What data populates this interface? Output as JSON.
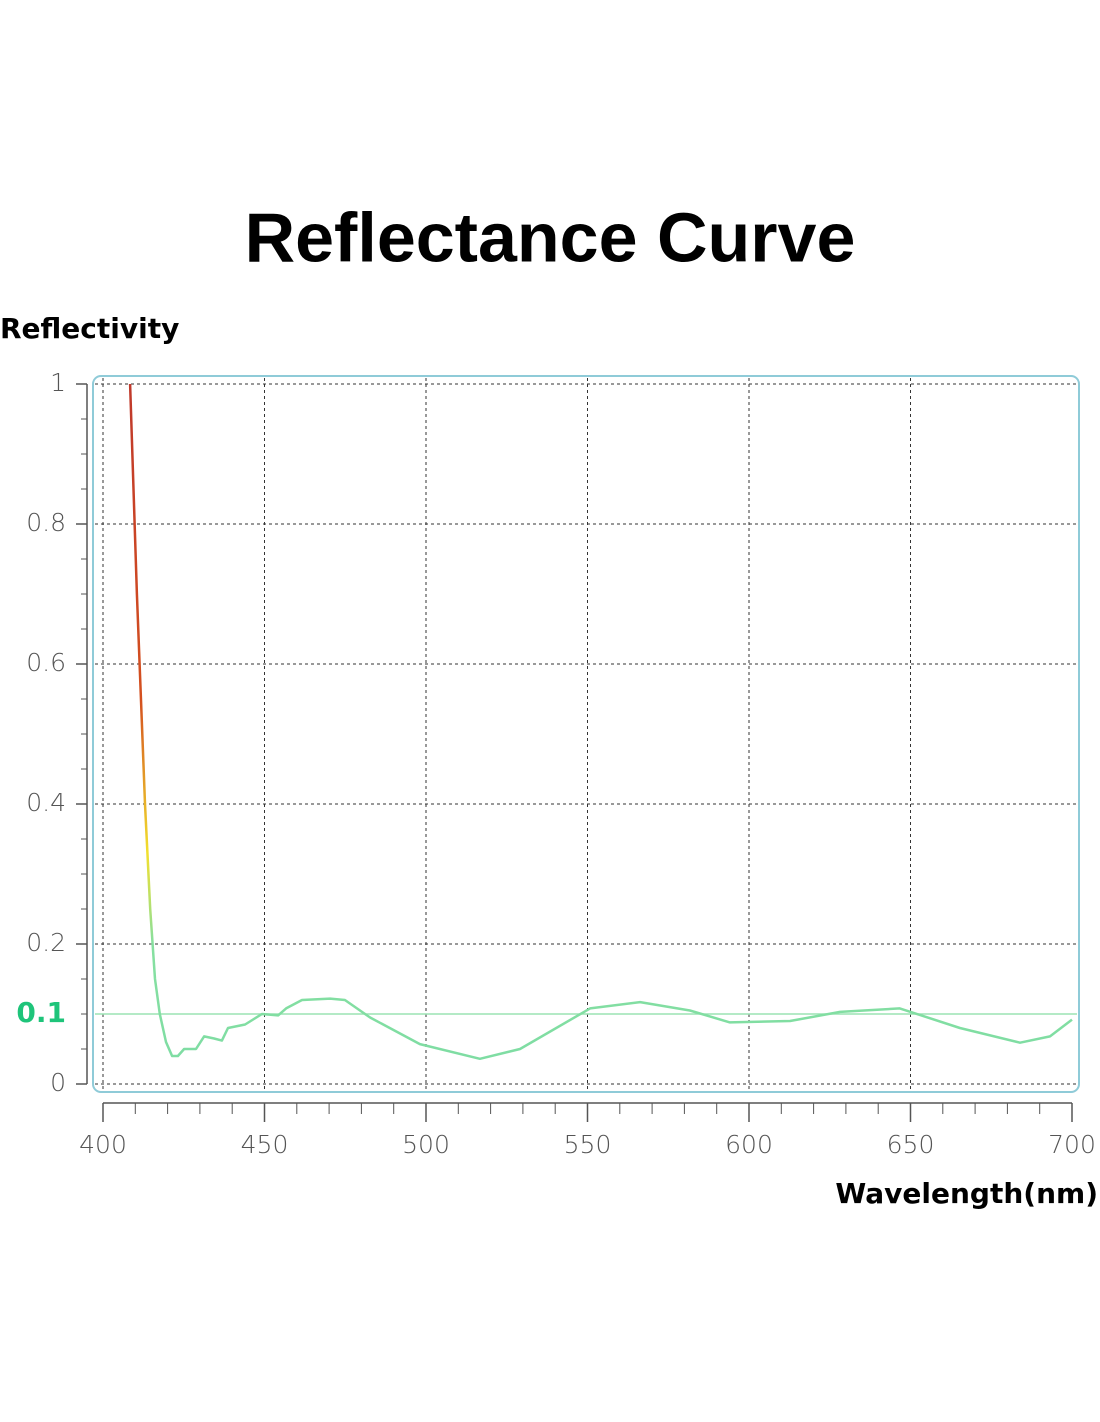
{
  "chart_data": {
    "type": "line",
    "title": "Reflectance Curve",
    "y_label": "Reflectivity",
    "x_label": "Wavelength(nm)",
    "x": [
      408.4,
      410.5,
      413,
      414.6,
      416.1,
      417.6,
      419.5,
      421.4,
      423.2,
      425.1,
      428.8,
      431.3,
      434.4,
      436.8,
      438.7,
      444,
      449.2,
      454.2,
      456.7,
      461.6,
      470.3,
      474.9,
      482.7,
      498.1,
      516.7,
      529.1,
      550.8,
      566.3,
      581.7,
      594.1,
      612.7,
      628.2,
      646.7,
      665.3,
      683.9,
      693.2,
      700
    ],
    "series": [
      {
        "name": "Reflectivity",
        "color": "#7ddca4",
        "values": [
          1.0,
          0.7,
          0.4,
          0.25,
          0.15,
          0.1,
          0.06,
          0.04,
          0.04,
          0.05,
          0.05,
          0.068,
          0.065,
          0.062,
          0.08,
          0.085,
          0.1,
          0.098,
          0.108,
          0.12,
          0.122,
          0.12,
          0.095,
          0.057,
          0.036,
          0.05,
          0.108,
          0.117,
          0.105,
          0.088,
          0.09,
          0.103,
          0.108,
          0.08,
          0.059,
          0.068,
          0.092
        ]
      }
    ],
    "gradient": [
      {
        "value": 1,
        "color": "#c0392b"
      },
      {
        "value": 0.55,
        "color": "#d4501f"
      },
      {
        "value": 0.33,
        "color": "#f2e02e"
      },
      {
        "value": 0.2,
        "color": "#86e0a0"
      },
      {
        "value": 0,
        "color": "#7ddca4"
      }
    ],
    "reference_line": {
      "value": 0.1,
      "color": "#9be3b4",
      "label_color": "#1ec47a"
    },
    "xlim": [
      400,
      700
    ],
    "xticks": [
      400,
      450,
      500,
      550,
      600,
      650,
      700
    ],
    "ylim": [
      0,
      1
    ],
    "yticks": [
      0,
      0.2,
      0.4,
      0.6,
      0.8,
      1
    ],
    "grid": true
  }
}
